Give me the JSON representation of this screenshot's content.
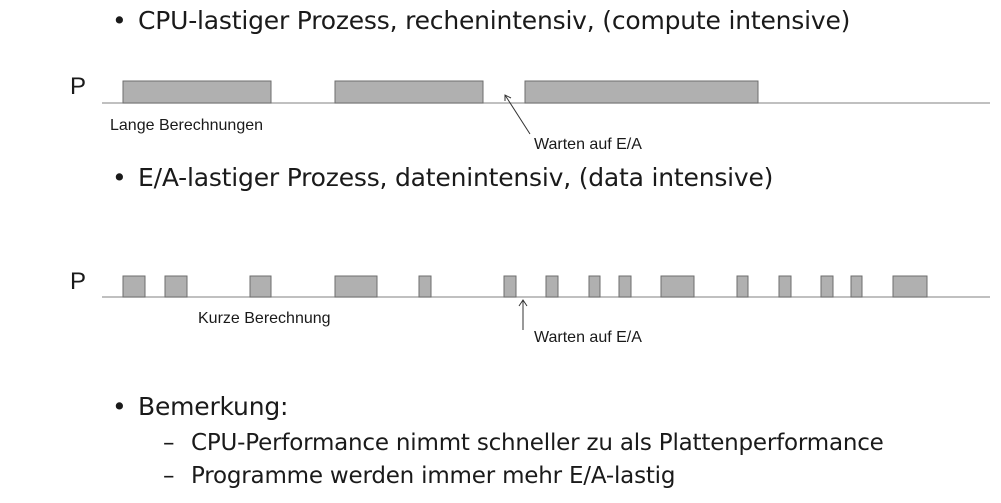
{
  "bullets": {
    "cpu": "CPU-lastiger Prozess, rechenintensiv, (compute intensive)",
    "io": "E/A-lastiger Prozess, datenintensiv, (data intensive)",
    "remark": "Bemerkung:"
  },
  "bullet_symbol": "•",
  "dash_symbol": "–",
  "remarks": [
    "CPU-Performance nimmt schneller zu als Plattenperformance",
    "Programme werden immer mehr E/A-lastig"
  ],
  "diagram_cpu": {
    "process_label": "P",
    "bursts_label": "Lange Berechnungen",
    "wait_label": "Warten auf E/A"
  },
  "diagram_io": {
    "process_label": "P",
    "bursts_label": "Kurze Berechnung",
    "wait_label": "Warten auf E/A"
  },
  "colors": {
    "block_fill": "#b0b0b0",
    "block_stroke": "#6e6e6e",
    "baseline": "#9a9a9a",
    "arrow": "#333333"
  }
}
